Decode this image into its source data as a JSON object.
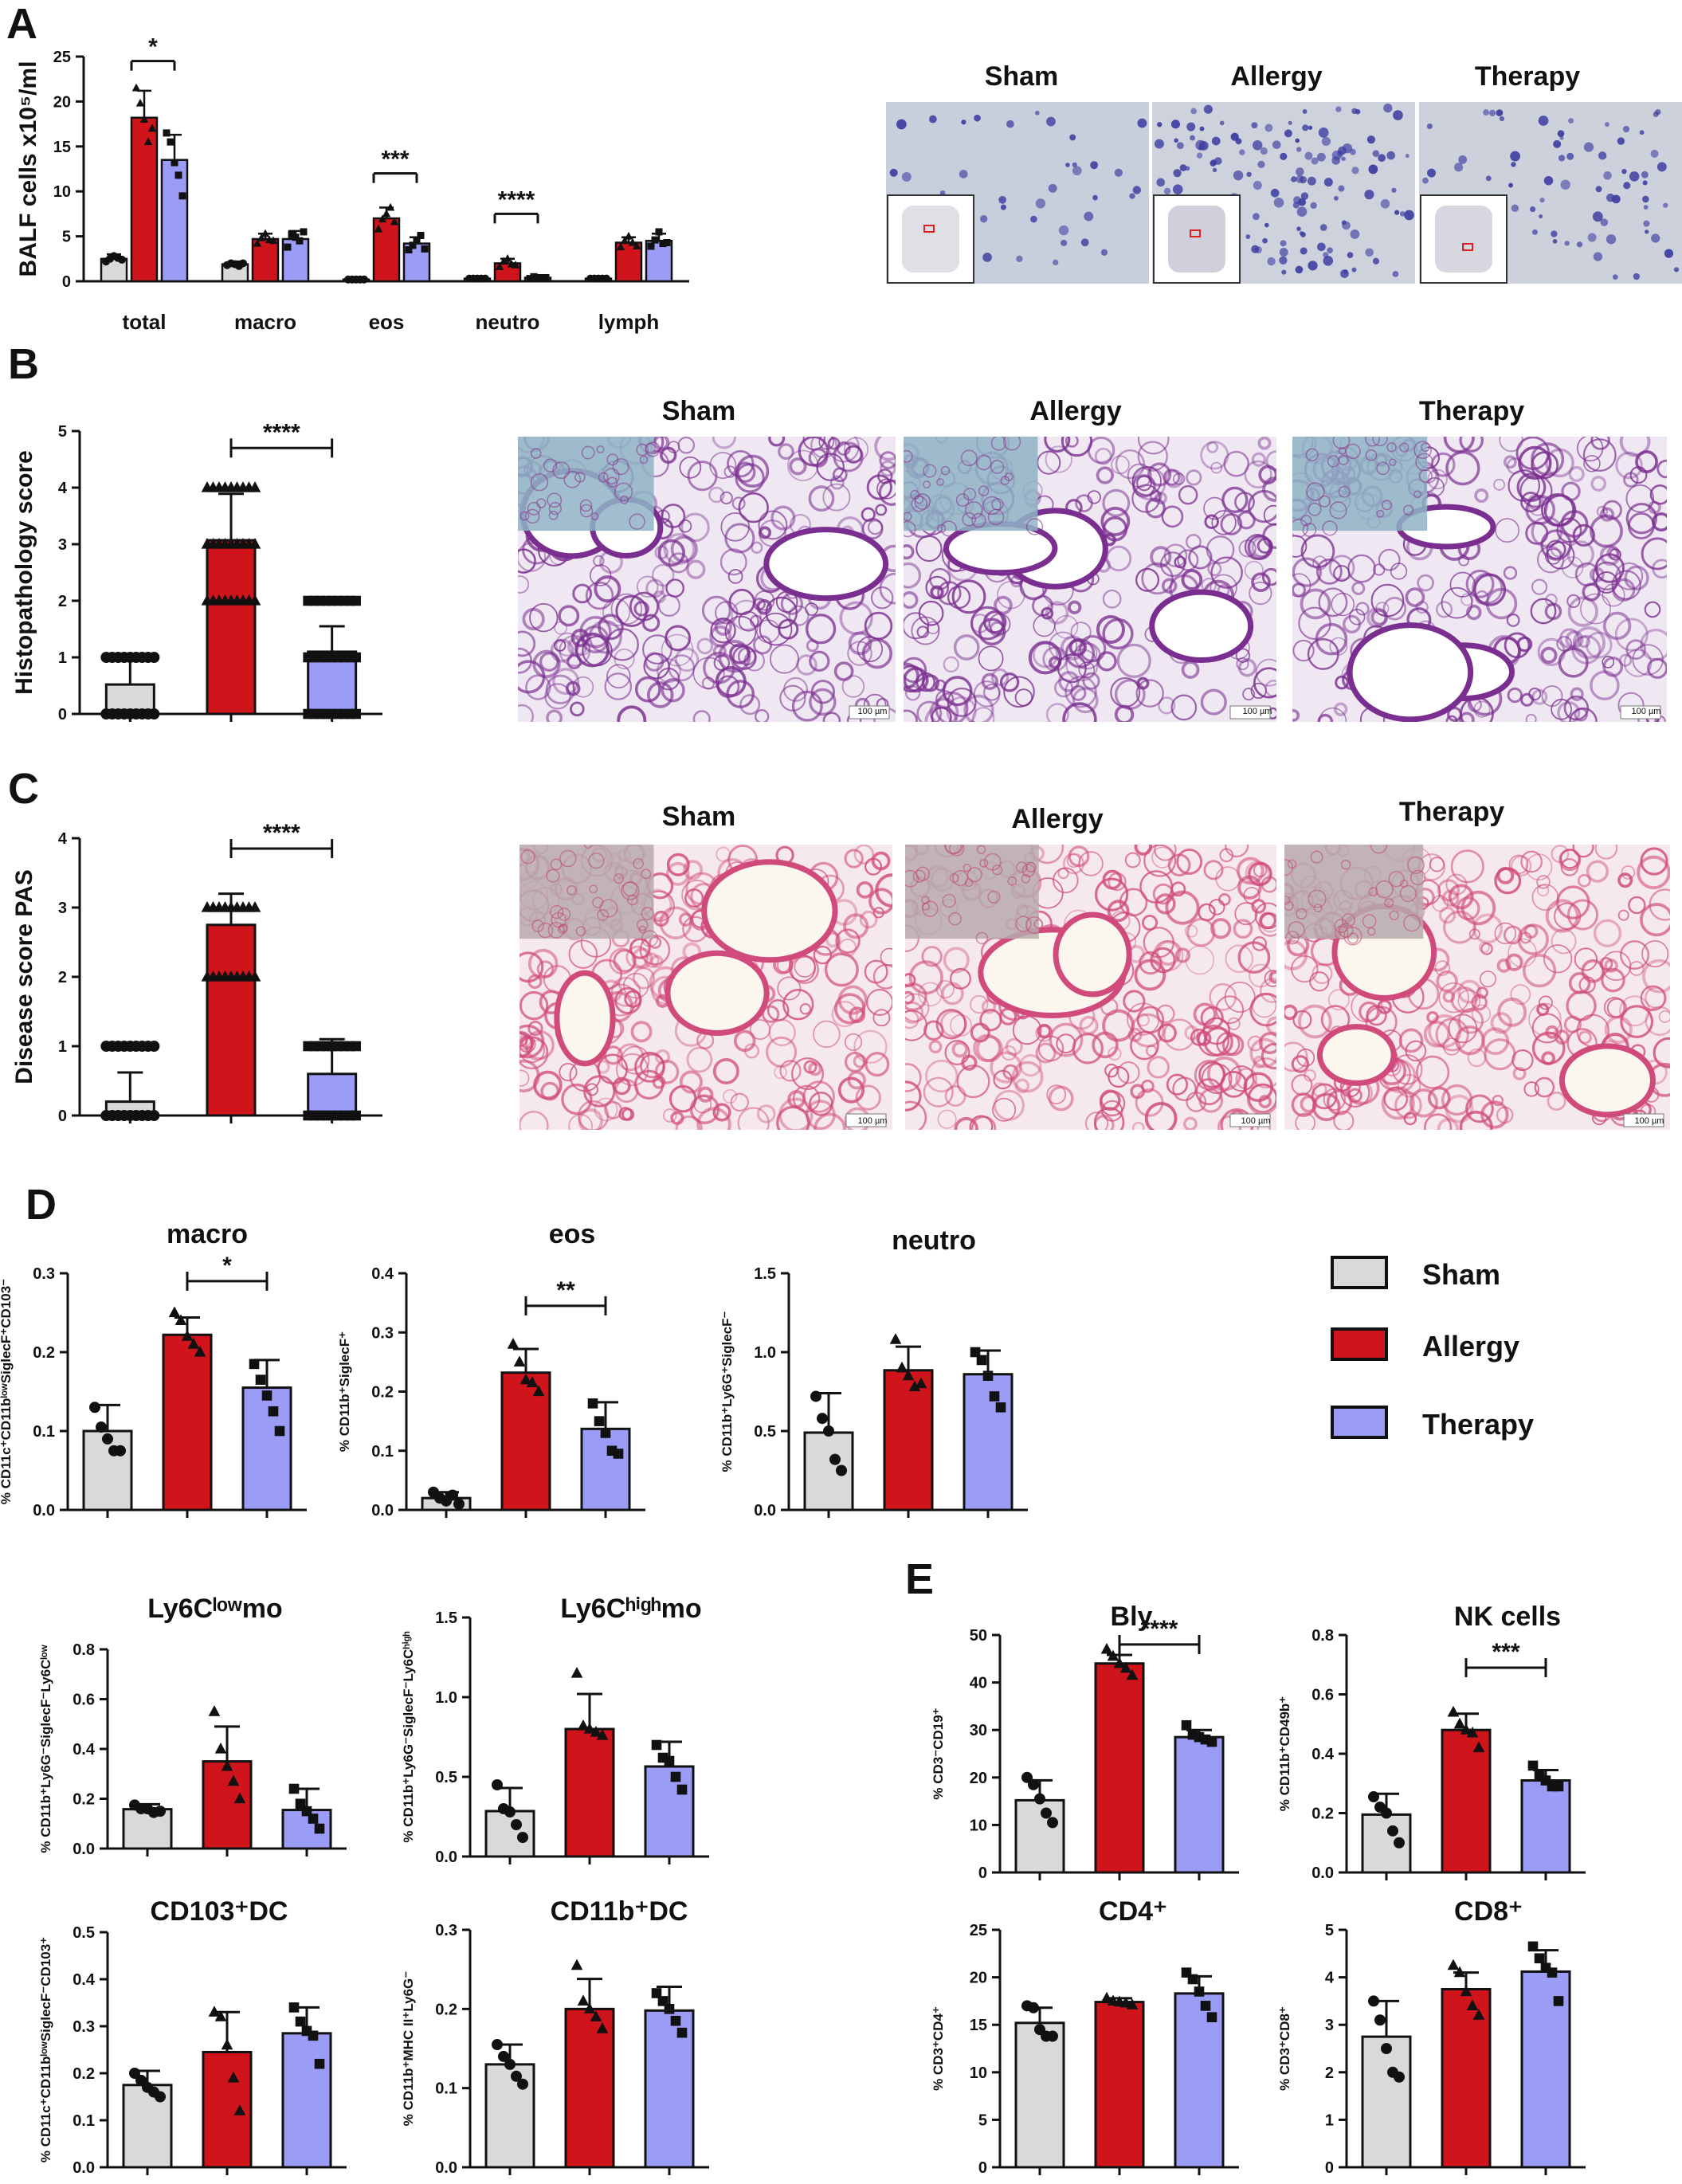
{
  "colors": {
    "sham": "#d9d9d9",
    "allergy": "#d0141b",
    "therapy": "#9b9cf5",
    "he_bg": "#efe7f2",
    "he_tissue": "#7a2e8f",
    "pas_bg": "#f6e9ec",
    "pas_tissue": "#d04a7c",
    "balf_bg": "#c9cfdb",
    "balf_cell": "#3d3da0"
  },
  "legend": {
    "icons": [
      "legend-swatch-icon"
    ],
    "items": [
      {
        "label": "Sham",
        "color": "#d9d9d9"
      },
      {
        "label": "Allergy",
        "color": "#d0141b"
      },
      {
        "label": "Therapy",
        "color": "#9b9cf5"
      }
    ]
  },
  "panels": {
    "A": {
      "label": "A",
      "images": [
        "Sham",
        "Allergy",
        "Therapy"
      ]
    },
    "B": {
      "label": "B",
      "images": [
        "Sham",
        "Allergy",
        "Therapy"
      ],
      "scale_bar": "100 µm"
    },
    "C": {
      "label": "C",
      "images": [
        "Sham",
        "Allergy",
        "Therapy"
      ],
      "scale_bar": "100 µm"
    },
    "D": {
      "label": "D"
    },
    "E": {
      "label": "E"
    }
  },
  "chart_data": [
    {
      "id": "A",
      "type": "bar",
      "title": "",
      "ylabel": "BALF cells x10⁵/ml",
      "ylim": [
        0,
        25
      ],
      "yticks": [
        0,
        5,
        10,
        15,
        20,
        25
      ],
      "categories": [
        "total",
        "macro",
        "eos",
        "neutro",
        "lymph"
      ],
      "series": [
        {
          "name": "Sham",
          "values": [
            2.5,
            1.9,
            0.2,
            0.3,
            0.3
          ],
          "errors": [
            0.5,
            0.3,
            0.1,
            0.1,
            0.1
          ],
          "points": [
            [
              2.2,
              2.5,
              2.8,
              2.6,
              2.4
            ],
            [
              1.8,
              2.0,
              1.9,
              1.7,
              2.0
            ],
            [
              0.2,
              0.2,
              0.2,
              0.2,
              0.2
            ],
            [
              0.3,
              0.3,
              0.3,
              0.3,
              0.3
            ],
            [
              0.3,
              0.3,
              0.3,
              0.3,
              0.3
            ]
          ]
        },
        {
          "name": "Allergy",
          "values": [
            18.2,
            4.7,
            7.0,
            2.0,
            4.3
          ],
          "errors": [
            3.0,
            0.6,
            1.2,
            0.5,
            0.6
          ],
          "points": [
            [
              21.5,
              19.8,
              18.0,
              15.5,
              17.0
            ],
            [
              4.2,
              4.8,
              5.3,
              4.6,
              4.5
            ],
            [
              5.8,
              6.9,
              7.5,
              8.2,
              6.6
            ],
            [
              1.6,
              2.2,
              2.5,
              1.9,
              1.8
            ],
            [
              3.8,
              4.5,
              5.0,
              4.3,
              3.9
            ]
          ]
        },
        {
          "name": "Therapy",
          "values": [
            13.5,
            4.7,
            4.2,
            0.4,
            4.5
          ],
          "errors": [
            2.8,
            0.9,
            0.7,
            0.1,
            0.8
          ],
          "points": [
            [
              16.5,
              15.5,
              13.2,
              11.8,
              9.5
            ],
            [
              3.8,
              5.2,
              4.9,
              4.5,
              5.5
            ],
            [
              3.5,
              4.0,
              4.6,
              5.1,
              3.6
            ],
            [
              0.3,
              0.5,
              0.4,
              0.4,
              0.4
            ],
            [
              3.9,
              4.6,
              5.5,
              4.2,
              4.3
            ]
          ]
        }
      ],
      "annotations": [
        {
          "category": "total",
          "between": [
            "Allergy",
            "Therapy"
          ],
          "text": "*",
          "y": 24.5
        },
        {
          "category": "eos",
          "between": [
            "Allergy",
            "Therapy"
          ],
          "text": "***",
          "y": 12.0
        },
        {
          "category": "neutro",
          "between": [
            "Allergy",
            "Therapy"
          ],
          "text": "****",
          "y": 7.5
        }
      ]
    },
    {
      "id": "B",
      "type": "bar",
      "title": "",
      "ylabel": "Histopathology score",
      "ylim": [
        0,
        5
      ],
      "yticks": [
        0,
        1,
        2,
        3,
        4,
        5
      ],
      "categories": [
        "Sham",
        "Allergy",
        "Therapy"
      ],
      "values": [
        0.52,
        3.07,
        1.1
      ],
      "errors": [
        0.5,
        0.82,
        0.45
      ],
      "point_values": [
        [
          0,
          1
        ],
        [
          2,
          3,
          4
        ],
        [
          0,
          1,
          2
        ]
      ],
      "annotations": [
        {
          "between": [
            "Allergy",
            "Therapy"
          ],
          "text": "****",
          "y": 4.7
        }
      ]
    },
    {
      "id": "C",
      "type": "bar",
      "title": "",
      "ylabel": "Disease score PAS",
      "ylim": [
        0,
        4
      ],
      "yticks": [
        0,
        1,
        2,
        3,
        4
      ],
      "categories": [
        "Sham",
        "Allergy",
        "Therapy"
      ],
      "values": [
        0.2,
        2.75,
        0.6
      ],
      "errors": [
        0.42,
        0.45,
        0.5
      ],
      "point_values": [
        [
          0,
          1
        ],
        [
          2,
          3
        ],
        [
          0,
          1
        ]
      ],
      "annotations": [
        {
          "between": [
            "Allergy",
            "Therapy"
          ],
          "text": "****",
          "y": 3.85
        }
      ]
    },
    {
      "id": "D-macro",
      "type": "bar",
      "title": "macro",
      "ylabel": "% CD11c⁺CD11bˡᵒʷSiglecF⁺CD103⁻",
      "ylim": [
        0,
        0.3
      ],
      "yticks": [
        "0.0",
        "0.1",
        "0.2",
        "0.3"
      ],
      "categories": [
        "Sham",
        "Allergy",
        "Therapy"
      ],
      "values": [
        0.1,
        0.222,
        0.155
      ],
      "errors": [
        0.033,
        0.022,
        0.035
      ],
      "points": [
        [
          0.13,
          0.105,
          0.09,
          0.075,
          0.075
        ],
        [
          0.25,
          0.24,
          0.22,
          0.21,
          0.2
        ],
        [
          0.185,
          0.165,
          0.145,
          0.125,
          0.1
        ]
      ],
      "annotations": [
        {
          "between": [
            "Allergy",
            "Therapy"
          ],
          "text": "*",
          "y": 0.29
        }
      ]
    },
    {
      "id": "D-eos",
      "type": "bar",
      "title": "eos",
      "ylabel": "% CD11b⁺SiglecF⁺",
      "ylim": [
        0,
        0.4
      ],
      "yticks": [
        "0.0",
        "0.1",
        "0.2",
        "0.3",
        "0.4"
      ],
      "categories": [
        "Sham",
        "Allergy",
        "Therapy"
      ],
      "values": [
        0.02,
        0.232,
        0.137
      ],
      "errors": [
        0.01,
        0.04,
        0.045
      ],
      "points": [
        [
          0.03,
          0.02,
          0.015,
          0.025,
          0.01
        ],
        [
          0.28,
          0.25,
          0.22,
          0.215,
          0.2
        ],
        [
          0.18,
          0.15,
          0.13,
          0.1,
          0.095
        ]
      ],
      "annotations": [
        {
          "between": [
            "Allergy",
            "Therapy"
          ],
          "text": "**",
          "y": 0.345
        }
      ]
    },
    {
      "id": "D-neutro",
      "type": "bar",
      "title": "neutro",
      "ylabel": "% CD11b⁺Ly6G⁺SiglecF⁻",
      "ylim": [
        0,
        1.5
      ],
      "yticks": [
        "0.0",
        "0.5",
        "1.0",
        "1.5"
      ],
      "categories": [
        "Sham",
        "Allergy",
        "Therapy"
      ],
      "values": [
        0.49,
        0.885,
        0.86
      ],
      "errors": [
        0.25,
        0.15,
        0.15
      ],
      "points": [
        [
          0.72,
          0.58,
          0.5,
          0.32,
          0.25
        ],
        [
          1.08,
          0.9,
          0.85,
          0.78,
          0.8
        ],
        [
          1.0,
          0.95,
          0.85,
          0.72,
          0.65
        ]
      ]
    },
    {
      "id": "D-ly6clow",
      "type": "bar",
      "title": "Ly6Cˡᵒʷmo",
      "ylabel": "% CD11b⁺Ly6G⁻SiglecF⁻Ly6Cˡᵒʷ",
      "ylim": [
        0,
        0.8
      ],
      "yticks": [
        "0.0",
        "0.2",
        "0.4",
        "0.6",
        "0.8"
      ],
      "categories": [
        "Sham",
        "Allergy",
        "Therapy"
      ],
      "values": [
        0.158,
        0.35,
        0.155
      ],
      "errors": [
        0.02,
        0.14,
        0.085
      ],
      "points": [
        [
          0.175,
          0.16,
          0.16,
          0.145,
          0.15
        ],
        [
          0.55,
          0.4,
          0.33,
          0.27,
          0.2
        ],
        [
          0.24,
          0.18,
          0.15,
          0.12,
          0.08
        ]
      ]
    },
    {
      "id": "D-ly6chigh",
      "type": "bar",
      "title": "Ly6Cʰⁱᵍʰmo",
      "ylabel": "% CD11b⁺Ly6G⁻SiglecF⁻Ly6Cʰⁱᵍʰ",
      "ylim": [
        0,
        1.5
      ],
      "yticks": [
        "0.0",
        "0.5",
        "1.0",
        "1.5"
      ],
      "categories": [
        "Sham",
        "Allergy",
        "Therapy"
      ],
      "values": [
        0.285,
        0.8,
        0.565
      ],
      "errors": [
        0.145,
        0.22,
        0.155
      ],
      "points": [
        [
          0.45,
          0.3,
          0.28,
          0.2,
          0.12
        ],
        [
          1.15,
          0.82,
          0.8,
          0.78,
          0.76
        ],
        [
          0.7,
          0.62,
          0.6,
          0.5,
          0.42
        ]
      ]
    },
    {
      "id": "D-cd103dc",
      "type": "bar",
      "title": "CD103⁺DC",
      "ylabel": "% CD11c⁺CD11bˡᵒʷSiglecF⁻CD103⁺",
      "ylim": [
        0,
        0.5
      ],
      "yticks": [
        "0.0",
        "0.1",
        "0.2",
        "0.3",
        "0.4",
        "0.5"
      ],
      "categories": [
        "Sham",
        "Allergy",
        "Therapy"
      ],
      "values": [
        0.175,
        0.245,
        0.285
      ],
      "errors": [
        0.03,
        0.085,
        0.055
      ],
      "points": [
        [
          0.2,
          0.185,
          0.17,
          0.16,
          0.15
        ],
        [
          0.33,
          0.32,
          0.26,
          0.19,
          0.12
        ],
        [
          0.34,
          0.31,
          0.29,
          0.28,
          0.22
        ]
      ]
    },
    {
      "id": "D-cd11bdc",
      "type": "bar",
      "title": "CD11b⁺DC",
      "ylabel": "% CD11b⁺MHC II⁺Ly6G⁻",
      "ylim": [
        0,
        0.3
      ],
      "yticks": [
        "0.0",
        "0.1",
        "0.2",
        "0.3"
      ],
      "categories": [
        "Sham",
        "Allergy",
        "Therapy"
      ],
      "values": [
        0.13,
        0.2,
        0.198
      ],
      "errors": [
        0.025,
        0.038,
        0.03
      ],
      "points": [
        [
          0.155,
          0.14,
          0.13,
          0.115,
          0.105
        ],
        [
          0.255,
          0.21,
          0.2,
          0.19,
          0.175
        ],
        [
          0.22,
          0.21,
          0.2,
          0.185,
          0.17
        ]
      ]
    },
    {
      "id": "E-bly",
      "type": "bar",
      "title": "Bly",
      "ylabel": "% CD3⁻CD19⁺",
      "ylim": [
        0,
        50
      ],
      "yticks": [
        "0",
        "10",
        "20",
        "30",
        "40",
        "50"
      ],
      "categories": [
        "Sham",
        "Allergy",
        "Therapy"
      ],
      "values": [
        15.2,
        44.0,
        28.5
      ],
      "errors": [
        4.2,
        1.8,
        1.5
      ],
      "points": [
        [
          20.0,
          18.5,
          15.5,
          12.5,
          10.5
        ],
        [
          47.0,
          45.5,
          44.0,
          43.0,
          41.5
        ],
        [
          31.0,
          29.0,
          28.5,
          28.0,
          27.5
        ]
      ],
      "annotations": [
        {
          "between": [
            "Allergy",
            "Therapy"
          ],
          "text": "****",
          "y": 48
        }
      ]
    },
    {
      "id": "E-nk",
      "type": "bar",
      "title": "NK cells",
      "ylabel": "% CD11b⁺CD49b⁺",
      "ylim": [
        0,
        0.8
      ],
      "yticks": [
        "0.0",
        "0.2",
        "0.4",
        "0.6",
        "0.8"
      ],
      "categories": [
        "Sham",
        "Allergy",
        "Therapy"
      ],
      "values": [
        0.195,
        0.48,
        0.31
      ],
      "errors": [
        0.07,
        0.055,
        0.035
      ],
      "points": [
        [
          0.255,
          0.22,
          0.2,
          0.14,
          0.1
        ],
        [
          0.54,
          0.5,
          0.48,
          0.47,
          0.42
        ],
        [
          0.36,
          0.33,
          0.31,
          0.29,
          0.29
        ]
      ],
      "annotations": [
        {
          "between": [
            "Allergy",
            "Therapy"
          ],
          "text": "***",
          "y": 0.69
        }
      ]
    },
    {
      "id": "E-cd4",
      "type": "bar",
      "title": "CD4⁺",
      "ylabel": "% CD3⁺CD4⁺",
      "ylim": [
        0,
        25
      ],
      "yticks": [
        "0",
        "5",
        "10",
        "15",
        "20",
        "25"
      ],
      "categories": [
        "Sham",
        "Allergy",
        "Therapy"
      ],
      "values": [
        15.2,
        17.4,
        18.3
      ],
      "errors": [
        1.6,
        0.4,
        1.8
      ],
      "points": [
        [
          17.0,
          16.8,
          14.5,
          13.8,
          13.8
        ],
        [
          17.8,
          17.5,
          17.4,
          17.3,
          17.1
        ],
        [
          20.5,
          19.8,
          18.5,
          17.0,
          15.8
        ]
      ]
    },
    {
      "id": "E-cd8",
      "type": "bar",
      "title": "CD8⁺",
      "ylabel": "% CD3⁺CD8⁺",
      "ylim": [
        0,
        5
      ],
      "yticks": [
        "0",
        "1",
        "2",
        "3",
        "4",
        "5"
      ],
      "categories": [
        "Sham",
        "Allergy",
        "Therapy"
      ],
      "values": [
        2.75,
        3.75,
        4.12
      ],
      "errors": [
        0.75,
        0.35,
        0.45
      ],
      "points": [
        [
          3.5,
          3.1,
          2.5,
          2.0,
          1.9
        ],
        [
          4.25,
          4.1,
          3.7,
          3.4,
          3.2
        ],
        [
          4.65,
          4.4,
          4.2,
          4.1,
          3.5
        ]
      ]
    }
  ]
}
